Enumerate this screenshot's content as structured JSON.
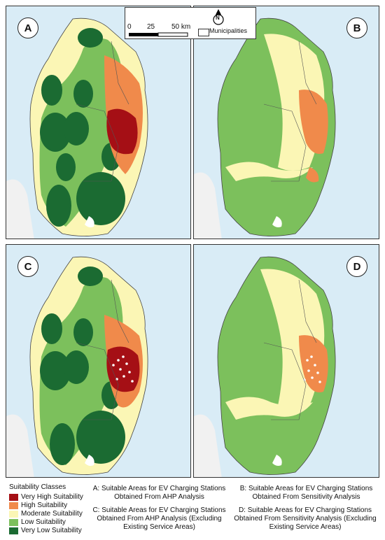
{
  "panels": [
    {
      "id": "A"
    },
    {
      "id": "B"
    },
    {
      "id": "C"
    },
    {
      "id": "D"
    }
  ],
  "scalebar": {
    "ticks": [
      "0",
      "25",
      "50 km"
    ],
    "municipalities_label": "Municipalities",
    "north_label": "N"
  },
  "legend": {
    "title": "Suitability Classes",
    "classes": [
      {
        "label": "Very High Suitability",
        "color": "#a50f15"
      },
      {
        "label": "High Suitability",
        "color": "#f08a4b"
      },
      {
        "label": "Moderate Suitability",
        "color": "#fbf6b5"
      },
      {
        "label": "Low Suitability",
        "color": "#7cc05c"
      },
      {
        "label": "Very Low Suitability",
        "color": "#1b6b32"
      }
    ]
  },
  "captions": {
    "A": [
      "A: Suitable Areas for EV Charging Stations",
      "Obtained From AHP Analysis"
    ],
    "B": [
      "B: Suitable Areas for EV Charging Stations",
      "Obtained From Sensitivity Analysis"
    ],
    "C": [
      "C: Suitable Areas for EV Charging Stations",
      "Obtained From AHP Analysis (Excluding",
      "Existing Service Areas)"
    ],
    "D": [
      "D: Suitable Areas for EV Charging Stations",
      "Obtained From Sensitivity Analysis (Excluding",
      "Existing Service Areas)"
    ]
  },
  "colors": {
    "water": "#d9ecf6",
    "land_outside": "#f1f1f1",
    "very_high": "#a50f15",
    "high": "#f08a4b",
    "moderate": "#fbf6b5",
    "low": "#7cc05c",
    "very_low": "#1b6b32"
  }
}
